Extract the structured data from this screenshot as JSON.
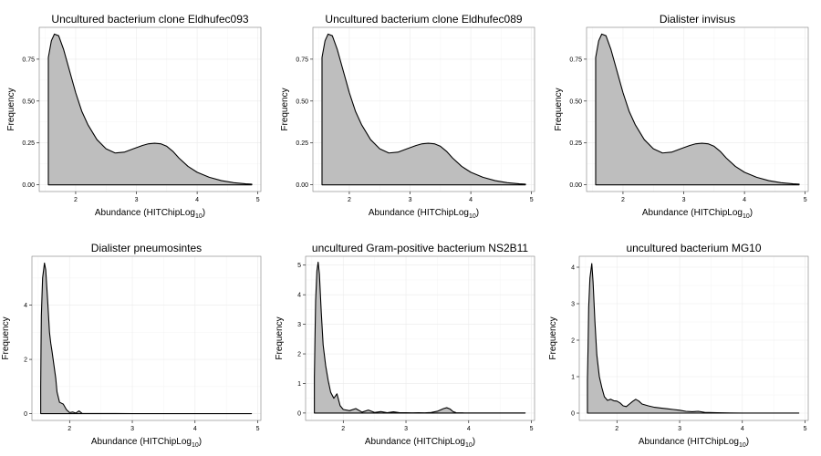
{
  "chart_data": [
    {
      "type": "area",
      "title": "Uncultured bacterium clone Eldhufec093",
      "xlabel": "Abundance (HITChipLog",
      "xlabel_sub": "10",
      "xlabel_close": ")",
      "ylabel": "Frequency",
      "xlim": [
        1.4,
        5.05
      ],
      "ylim": [
        -0.04,
        0.94
      ],
      "x_ticks": [
        2,
        3,
        4,
        5
      ],
      "y_ticks": [
        0.0,
        0.25,
        0.5,
        0.75
      ],
      "y_tick_labels": [
        "0.00",
        "0.25",
        "0.50",
        "0.75"
      ],
      "grid": true,
      "x": [
        1.55,
        1.57,
        1.6,
        1.65,
        1.72,
        1.8,
        1.9,
        2.0,
        2.1,
        2.2,
        2.35,
        2.5,
        2.65,
        2.8,
        2.95,
        3.1,
        3.2,
        3.3,
        3.4,
        3.5,
        3.6,
        3.7,
        3.85,
        4.0,
        4.2,
        4.4,
        4.6,
        4.8,
        4.9
      ],
      "y": [
        0.76,
        0.8,
        0.86,
        0.9,
        0.89,
        0.81,
        0.68,
        0.55,
        0.44,
        0.36,
        0.27,
        0.215,
        0.19,
        0.195,
        0.215,
        0.235,
        0.245,
        0.248,
        0.245,
        0.23,
        0.2,
        0.16,
        0.11,
        0.075,
        0.045,
        0.025,
        0.013,
        0.006,
        0.004
      ]
    },
    {
      "type": "area",
      "title": "Uncultured bacterium clone Eldhufec089",
      "xlabel": "Abundance (HITChipLog",
      "xlabel_sub": "10",
      "xlabel_close": ")",
      "ylabel": "Frequency",
      "xlim": [
        1.4,
        5.05
      ],
      "ylim": [
        -0.04,
        0.94
      ],
      "x_ticks": [
        2,
        3,
        4,
        5
      ],
      "y_ticks": [
        0.0,
        0.25,
        0.5,
        0.75
      ],
      "y_tick_labels": [
        "0.00",
        "0.25",
        "0.50",
        "0.75"
      ],
      "grid": true,
      "x": [
        1.55,
        1.57,
        1.6,
        1.65,
        1.72,
        1.8,
        1.9,
        2.0,
        2.1,
        2.2,
        2.35,
        2.5,
        2.65,
        2.8,
        2.95,
        3.1,
        3.2,
        3.3,
        3.4,
        3.5,
        3.6,
        3.7,
        3.85,
        4.0,
        4.2,
        4.4,
        4.6,
        4.8,
        4.9
      ],
      "y": [
        0.76,
        0.8,
        0.86,
        0.9,
        0.89,
        0.81,
        0.68,
        0.55,
        0.44,
        0.36,
        0.27,
        0.215,
        0.19,
        0.195,
        0.215,
        0.235,
        0.245,
        0.248,
        0.245,
        0.23,
        0.2,
        0.16,
        0.11,
        0.075,
        0.045,
        0.025,
        0.013,
        0.006,
        0.004
      ]
    },
    {
      "type": "area",
      "title": "Dialister invisus",
      "xlabel": "Abundance (HITChipLog",
      "xlabel_sub": "10",
      "xlabel_close": ")",
      "ylabel": "Frequency",
      "xlim": [
        1.4,
        5.05
      ],
      "ylim": [
        -0.04,
        0.94
      ],
      "x_ticks": [
        2,
        3,
        4,
        5
      ],
      "y_ticks": [
        0.0,
        0.25,
        0.5,
        0.75
      ],
      "y_tick_labels": [
        "0.00",
        "0.25",
        "0.50",
        "0.75"
      ],
      "grid": true,
      "x": [
        1.55,
        1.57,
        1.6,
        1.65,
        1.72,
        1.8,
        1.9,
        2.0,
        2.1,
        2.2,
        2.35,
        2.5,
        2.65,
        2.8,
        2.95,
        3.1,
        3.2,
        3.3,
        3.4,
        3.5,
        3.6,
        3.7,
        3.85,
        4.0,
        4.2,
        4.4,
        4.6,
        4.8,
        4.9
      ],
      "y": [
        0.76,
        0.8,
        0.86,
        0.9,
        0.89,
        0.81,
        0.68,
        0.55,
        0.44,
        0.36,
        0.27,
        0.215,
        0.19,
        0.195,
        0.215,
        0.235,
        0.245,
        0.248,
        0.245,
        0.23,
        0.2,
        0.16,
        0.11,
        0.075,
        0.045,
        0.025,
        0.013,
        0.006,
        0.004
      ]
    },
    {
      "type": "area",
      "title": "Dialister pneumosintes",
      "xlabel": "Abundance (HITChipLog",
      "xlabel_sub": "10",
      "xlabel_close": ")",
      "ylabel": "Frequency",
      "xlim": [
        1.4,
        5.05
      ],
      "ylim": [
        -0.25,
        5.8
      ],
      "x_ticks": [
        2,
        3,
        4,
        5
      ],
      "y_ticks": [
        0,
        2,
        4
      ],
      "y_tick_labels": [
        "0",
        "2",
        "4"
      ],
      "grid": true,
      "x": [
        1.54,
        1.545,
        1.55,
        1.57,
        1.6,
        1.62,
        1.65,
        1.68,
        1.7,
        1.72,
        1.75,
        1.78,
        1.8,
        1.84,
        1.9,
        1.95,
        2.0,
        2.05,
        2.1,
        2.15,
        2.2,
        2.25,
        2.5,
        3.0,
        3.5,
        4.0,
        4.5,
        4.9
      ],
      "y": [
        1.0,
        2.5,
        3.6,
        5.0,
        5.55,
        5.3,
        4.2,
        3.0,
        2.6,
        2.3,
        1.8,
        1.3,
        0.8,
        0.42,
        0.35,
        0.15,
        0.04,
        0.06,
        0.02,
        0.1,
        0.01,
        0.005,
        0.003,
        0.002,
        0.001,
        0.001,
        0.001,
        0.001
      ]
    },
    {
      "type": "area",
      "title": "uncultured Gram-positive bacterium NS2B11",
      "xlabel": "Abundance (HITChipLog",
      "xlabel_sub": "10",
      "xlabel_close": ")",
      "ylabel": "Frequency",
      "xlim": [
        1.4,
        5.05
      ],
      "ylim": [
        -0.25,
        5.3
      ],
      "x_ticks": [
        2,
        3,
        4,
        5
      ],
      "y_ticks": [
        0,
        1,
        2,
        3,
        4,
        5
      ],
      "y_tick_labels": [
        "0",
        "1",
        "2",
        "3",
        "4",
        "5"
      ],
      "grid": true,
      "x": [
        1.54,
        1.55,
        1.56,
        1.58,
        1.6,
        1.62,
        1.65,
        1.68,
        1.72,
        1.76,
        1.8,
        1.85,
        1.9,
        1.95,
        2.0,
        2.1,
        2.2,
        2.3,
        2.4,
        2.5,
        2.6,
        2.7,
        2.8,
        2.9,
        3.0,
        3.1,
        3.2,
        3.3,
        3.4,
        3.5,
        3.6,
        3.65,
        3.7,
        3.75,
        3.8,
        3.9,
        4.0,
        4.5,
        4.9
      ],
      "y": [
        1.2,
        2.6,
        3.8,
        4.8,
        5.1,
        4.7,
        3.4,
        2.3,
        1.6,
        1.1,
        0.7,
        0.5,
        0.65,
        0.25,
        0.12,
        0.08,
        0.15,
        0.03,
        0.1,
        0.02,
        0.05,
        0.01,
        0.04,
        0.01,
        0.01,
        0.005,
        0.01,
        0.005,
        0.02,
        0.06,
        0.15,
        0.18,
        0.14,
        0.05,
        0.01,
        0.005,
        0.003,
        0.002,
        0.002
      ]
    },
    {
      "type": "area",
      "title": "uncultured bacterium MG10",
      "xlabel": "Abundance (HITChipLog",
      "xlabel_sub": "10",
      "xlabel_close": ")",
      "ylabel": "Frequency",
      "xlim": [
        1.4,
        5.05
      ],
      "ylim": [
        -0.2,
        4.3
      ],
      "x_ticks": [
        2,
        3,
        4,
        5
      ],
      "y_ticks": [
        0,
        1,
        2,
        3,
        4
      ],
      "y_tick_labels": [
        "0",
        "1",
        "2",
        "3",
        "4"
      ],
      "grid": true,
      "x": [
        1.53,
        1.54,
        1.55,
        1.57,
        1.6,
        1.62,
        1.65,
        1.68,
        1.72,
        1.76,
        1.8,
        1.85,
        1.9,
        1.95,
        2.0,
        2.05,
        2.1,
        2.15,
        2.2,
        2.25,
        2.3,
        2.35,
        2.4,
        2.5,
        2.6,
        2.7,
        2.8,
        2.9,
        3.0,
        3.1,
        3.2,
        3.3,
        3.4,
        3.6,
        3.8,
        4.0,
        4.5,
        4.9
      ],
      "y": [
        0.9,
        1.8,
        2.9,
        3.7,
        4.1,
        3.6,
        2.5,
        1.6,
        1.0,
        0.7,
        0.45,
        0.35,
        0.38,
        0.34,
        0.33,
        0.28,
        0.2,
        0.18,
        0.25,
        0.32,
        0.38,
        0.33,
        0.25,
        0.2,
        0.16,
        0.14,
        0.12,
        0.1,
        0.08,
        0.05,
        0.04,
        0.05,
        0.02,
        0.01,
        0.005,
        0.003,
        0.002,
        0.001
      ]
    }
  ]
}
